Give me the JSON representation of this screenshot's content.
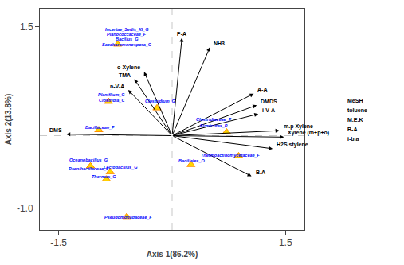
{
  "chart_data": {
    "type": "biplot",
    "xlabel": "Axis 1(86.2%)",
    "ylabel": "Axis 2(13.8%)",
    "xlim": [
      -1.75,
      1.75
    ],
    "ylim": [
      -1.3,
      1.75
    ],
    "xticks": [
      -1.5,
      1.5
    ],
    "yticks": [
      {
        "value": -1.0,
        "label": "-1.0"
      },
      1.5
    ],
    "grid": false,
    "arrows": [
      {
        "label": "P-A",
        "x": 0.13,
        "y": 1.35
      },
      {
        "label": "NH3",
        "x": 0.5,
        "y": 1.22
      },
      {
        "label": "o-Xylene",
        "x": -0.37,
        "y": 0.88
      },
      {
        "label": "TMA",
        "x": -0.5,
        "y": 0.78
      },
      {
        "label": "n-V-A",
        "x": -0.58,
        "y": 0.63
      },
      {
        "label": "A-A",
        "x": 1.08,
        "y": 0.58
      },
      {
        "label": "DMDS",
        "x": 1.12,
        "y": 0.42
      },
      {
        "label": "i-V-A",
        "x": 1.14,
        "y": 0.3
      },
      {
        "label": "DMS",
        "x": -1.4,
        "y": 0.02
      },
      {
        "label": "m.p Xylene",
        "x": 1.42,
        "y": 0.07
      },
      {
        "label": "Xylene (m+p+o)",
        "x": 1.48,
        "y": -0.02
      },
      {
        "label": "H2S stylene",
        "x": 1.33,
        "y": -0.18
      },
      {
        "label": "B.A",
        "x": 1.05,
        "y": -0.56
      }
    ],
    "point_labels": {
      "color": "blue",
      "labels": [
        "Incertae_Sedis_XI_G",
        "Planococcaceae_F",
        "Bacillus_G",
        "Saccharomonospora_G",
        "Planiflium_G",
        "Clostridia_C",
        "Bacillaceae_F",
        "Oceanobacillus_G",
        "Paenibacillaceae_F",
        "Lactobacillus_G",
        "Thermus_G",
        "Pseudomonadaceae_F",
        "Clostridium_G",
        "Clostridiaceae_F",
        "Firmicutes_P",
        "Bacillales_O",
        "Thermoactinomycetaceae_F"
      ],
      "x": [
        -0.6,
        -0.6,
        -0.6,
        -0.6,
        -0.8,
        -0.8,
        -0.95,
        -1.1,
        -1.1,
        -0.68,
        -0.9,
        -0.58,
        -0.15,
        0.55,
        0.55,
        0.26,
        0.78
      ],
      "y": [
        1.47,
        1.4,
        1.33,
        1.26,
        0.57,
        0.49,
        0.11,
        -0.33,
        -0.46,
        -0.43,
        -0.57,
        -1.12,
        0.48,
        0.22,
        0.14,
        -0.35,
        -0.27
      ]
    },
    "points": {
      "marker": "triangle-up",
      "color": "#FFD700",
      "x": [
        -0.72,
        -0.84,
        -0.97,
        -1.08,
        -0.82,
        -0.87,
        -0.6,
        -0.2,
        0.72,
        0.25,
        0.88
      ],
      "y": [
        1.26,
        0.47,
        0.08,
        -0.42,
        -0.5,
        -0.6,
        -1.12,
        0.38,
        0.05,
        -0.4,
        -0.28
      ]
    },
    "right_labels": [
      "MeSH",
      "toluene",
      "M.E.K",
      "B-A",
      "i-b.a"
    ]
  }
}
